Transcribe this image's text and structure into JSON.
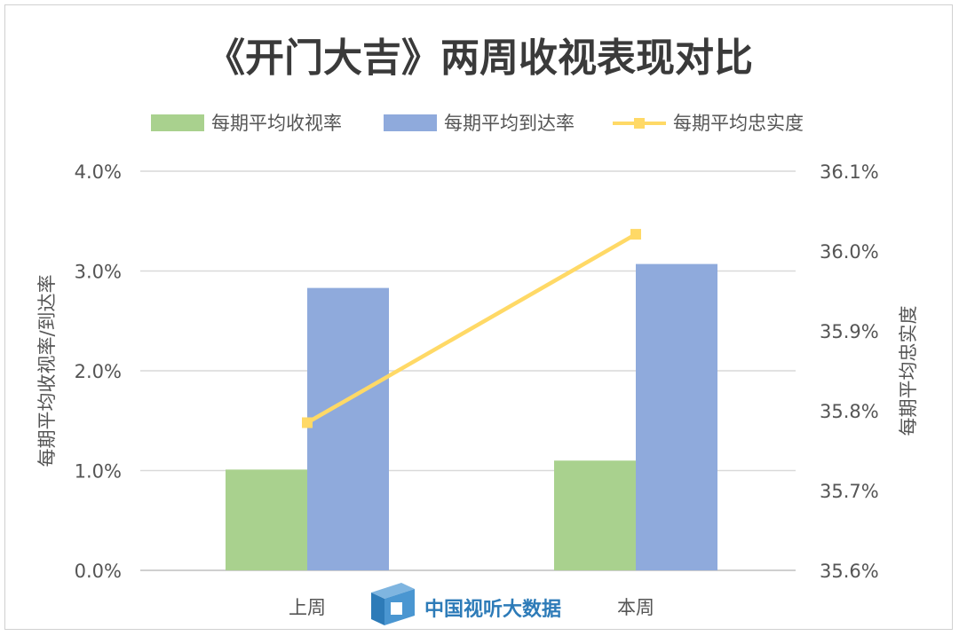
{
  "chart_data": {
    "type": "bar",
    "title": "《开门大吉》两周收视表现对比",
    "categories": [
      "上周",
      "本周"
    ],
    "series": [
      {
        "name": "每期平均收视率",
        "type": "bar",
        "axis": "left",
        "color": "#a9d18e",
        "values": [
          1.01,
          1.1
        ]
      },
      {
        "name": "每期平均到达率",
        "type": "bar",
        "axis": "left",
        "color": "#8faadc",
        "values": [
          2.83,
          3.07
        ]
      },
      {
        "name": "每期平均忠实度",
        "type": "line",
        "axis": "right",
        "color": "#ffd966",
        "values": [
          35.785,
          36.021
        ]
      }
    ],
    "y_left": {
      "label": "每期平均收视率/到达率",
      "ylim": [
        0,
        4
      ],
      "ticks": [
        0,
        1,
        2,
        3,
        4
      ],
      "tick_labels": [
        "0.0%",
        "1.0%",
        "2.0%",
        "3.0%",
        "4.0%"
      ]
    },
    "y_right": {
      "label": "每期平均忠实度",
      "ylim": [
        35.6,
        36.1
      ],
      "ticks": [
        35.6,
        35.7,
        35.8,
        35.9,
        36.0,
        36.1
      ],
      "tick_labels": [
        "35.6%",
        "35.7%",
        "35.8%",
        "35.9%",
        "36.0%",
        "36.1%"
      ]
    },
    "grid": true,
    "legend_position": "top"
  },
  "watermark": {
    "text": "中国视听大数据",
    "icon": "cvb-logo-icon"
  }
}
